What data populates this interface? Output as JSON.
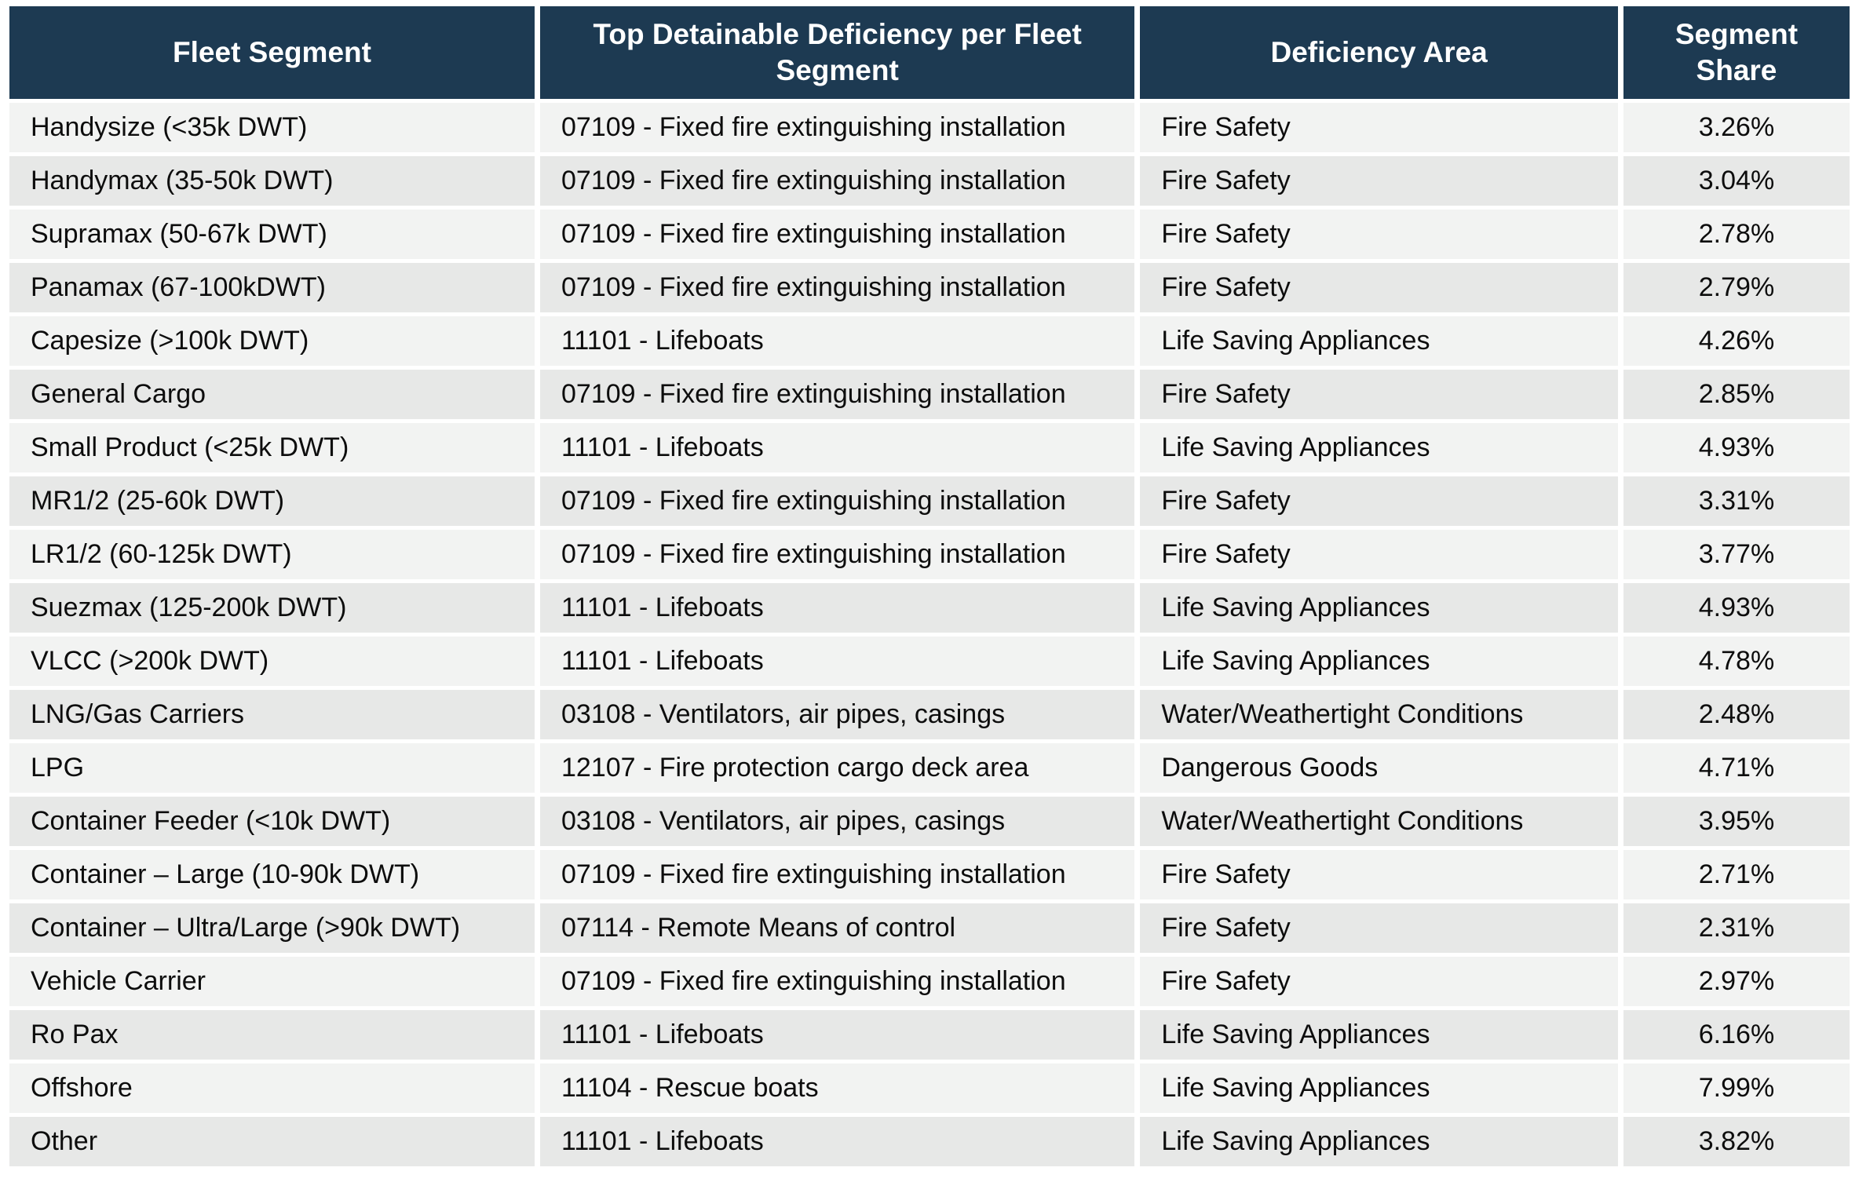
{
  "table": {
    "columns": [
      {
        "label": "Fleet Segment"
      },
      {
        "label": "Top Detainable Deficiency per Fleet Segment"
      },
      {
        "label": "Deficiency Area"
      },
      {
        "label": "Segment Share"
      }
    ],
    "rows": [
      [
        "Handysize (<35k DWT)",
        "07109 - Fixed fire extinguishing installation",
        "Fire Safety",
        "3.26%"
      ],
      [
        "Handymax (35-50k DWT)",
        "07109 - Fixed fire extinguishing installation",
        "Fire Safety",
        "3.04%"
      ],
      [
        "Supramax (50-67k DWT)",
        "07109 - Fixed fire extinguishing installation",
        "Fire Safety",
        "2.78%"
      ],
      [
        "Panamax (67-100kDWT)",
        "07109 - Fixed fire extinguishing installation",
        "Fire Safety",
        "2.79%"
      ],
      [
        "Capesize (>100k DWT)",
        "11101 - Lifeboats",
        "Life Saving Appliances",
        "4.26%"
      ],
      [
        "General Cargo",
        "07109 - Fixed fire extinguishing installation",
        "Fire Safety",
        "2.85%"
      ],
      [
        "Small Product (<25k DWT)",
        "11101 - Lifeboats",
        "Life Saving Appliances",
        "4.93%"
      ],
      [
        "MR1/2 (25-60k DWT)",
        "07109 - Fixed fire extinguishing installation",
        "Fire Safety",
        "3.31%"
      ],
      [
        "LR1/2 (60-125k DWT)",
        "07109 - Fixed fire extinguishing installation",
        "Fire Safety",
        "3.77%"
      ],
      [
        "Suezmax (125-200k DWT)",
        "11101 - Lifeboats",
        "Life Saving Appliances",
        "4.93%"
      ],
      [
        "VLCC (>200k DWT)",
        "11101 - Lifeboats",
        "Life Saving Appliances",
        "4.78%"
      ],
      [
        "LNG/Gas Carriers",
        "03108 - Ventilators, air pipes, casings",
        "Water/Weathertight Conditions",
        "2.48%"
      ],
      [
        "LPG",
        "12107 - Fire protection cargo deck area",
        "Dangerous Goods",
        "4.71%"
      ],
      [
        "Container Feeder (<10k DWT)",
        "03108 - Ventilators, air pipes, casings",
        "Water/Weathertight Conditions",
        "3.95%"
      ],
      [
        "Container – Large (10-90k DWT)",
        "07109 - Fixed fire extinguishing installation",
        "Fire Safety",
        "2.71%"
      ],
      [
        "Container – Ultra/Large (>90k DWT)",
        "07114 - Remote Means of control",
        "Fire Safety",
        "2.31%"
      ],
      [
        "Vehicle Carrier",
        "07109 - Fixed fire extinguishing installation",
        "Fire Safety",
        "2.97%"
      ],
      [
        "Ro Pax",
        "11101 - Lifeboats",
        "Life Saving Appliances",
        "6.16%"
      ],
      [
        "Offshore",
        "11104 - Rescue boats",
        "Life Saving Appliances",
        "7.99%"
      ],
      [
        "Other",
        "11101 - Lifeboats",
        "Life Saving Appliances",
        "3.82%"
      ]
    ]
  },
  "colors": {
    "header_bg": "#1d3a52",
    "header_text": "#ffffff",
    "row_light": "#f2f3f2",
    "row_dark": "#e7e8e7",
    "body_text": "#0d0d0d",
    "gap": "#ffffff"
  }
}
